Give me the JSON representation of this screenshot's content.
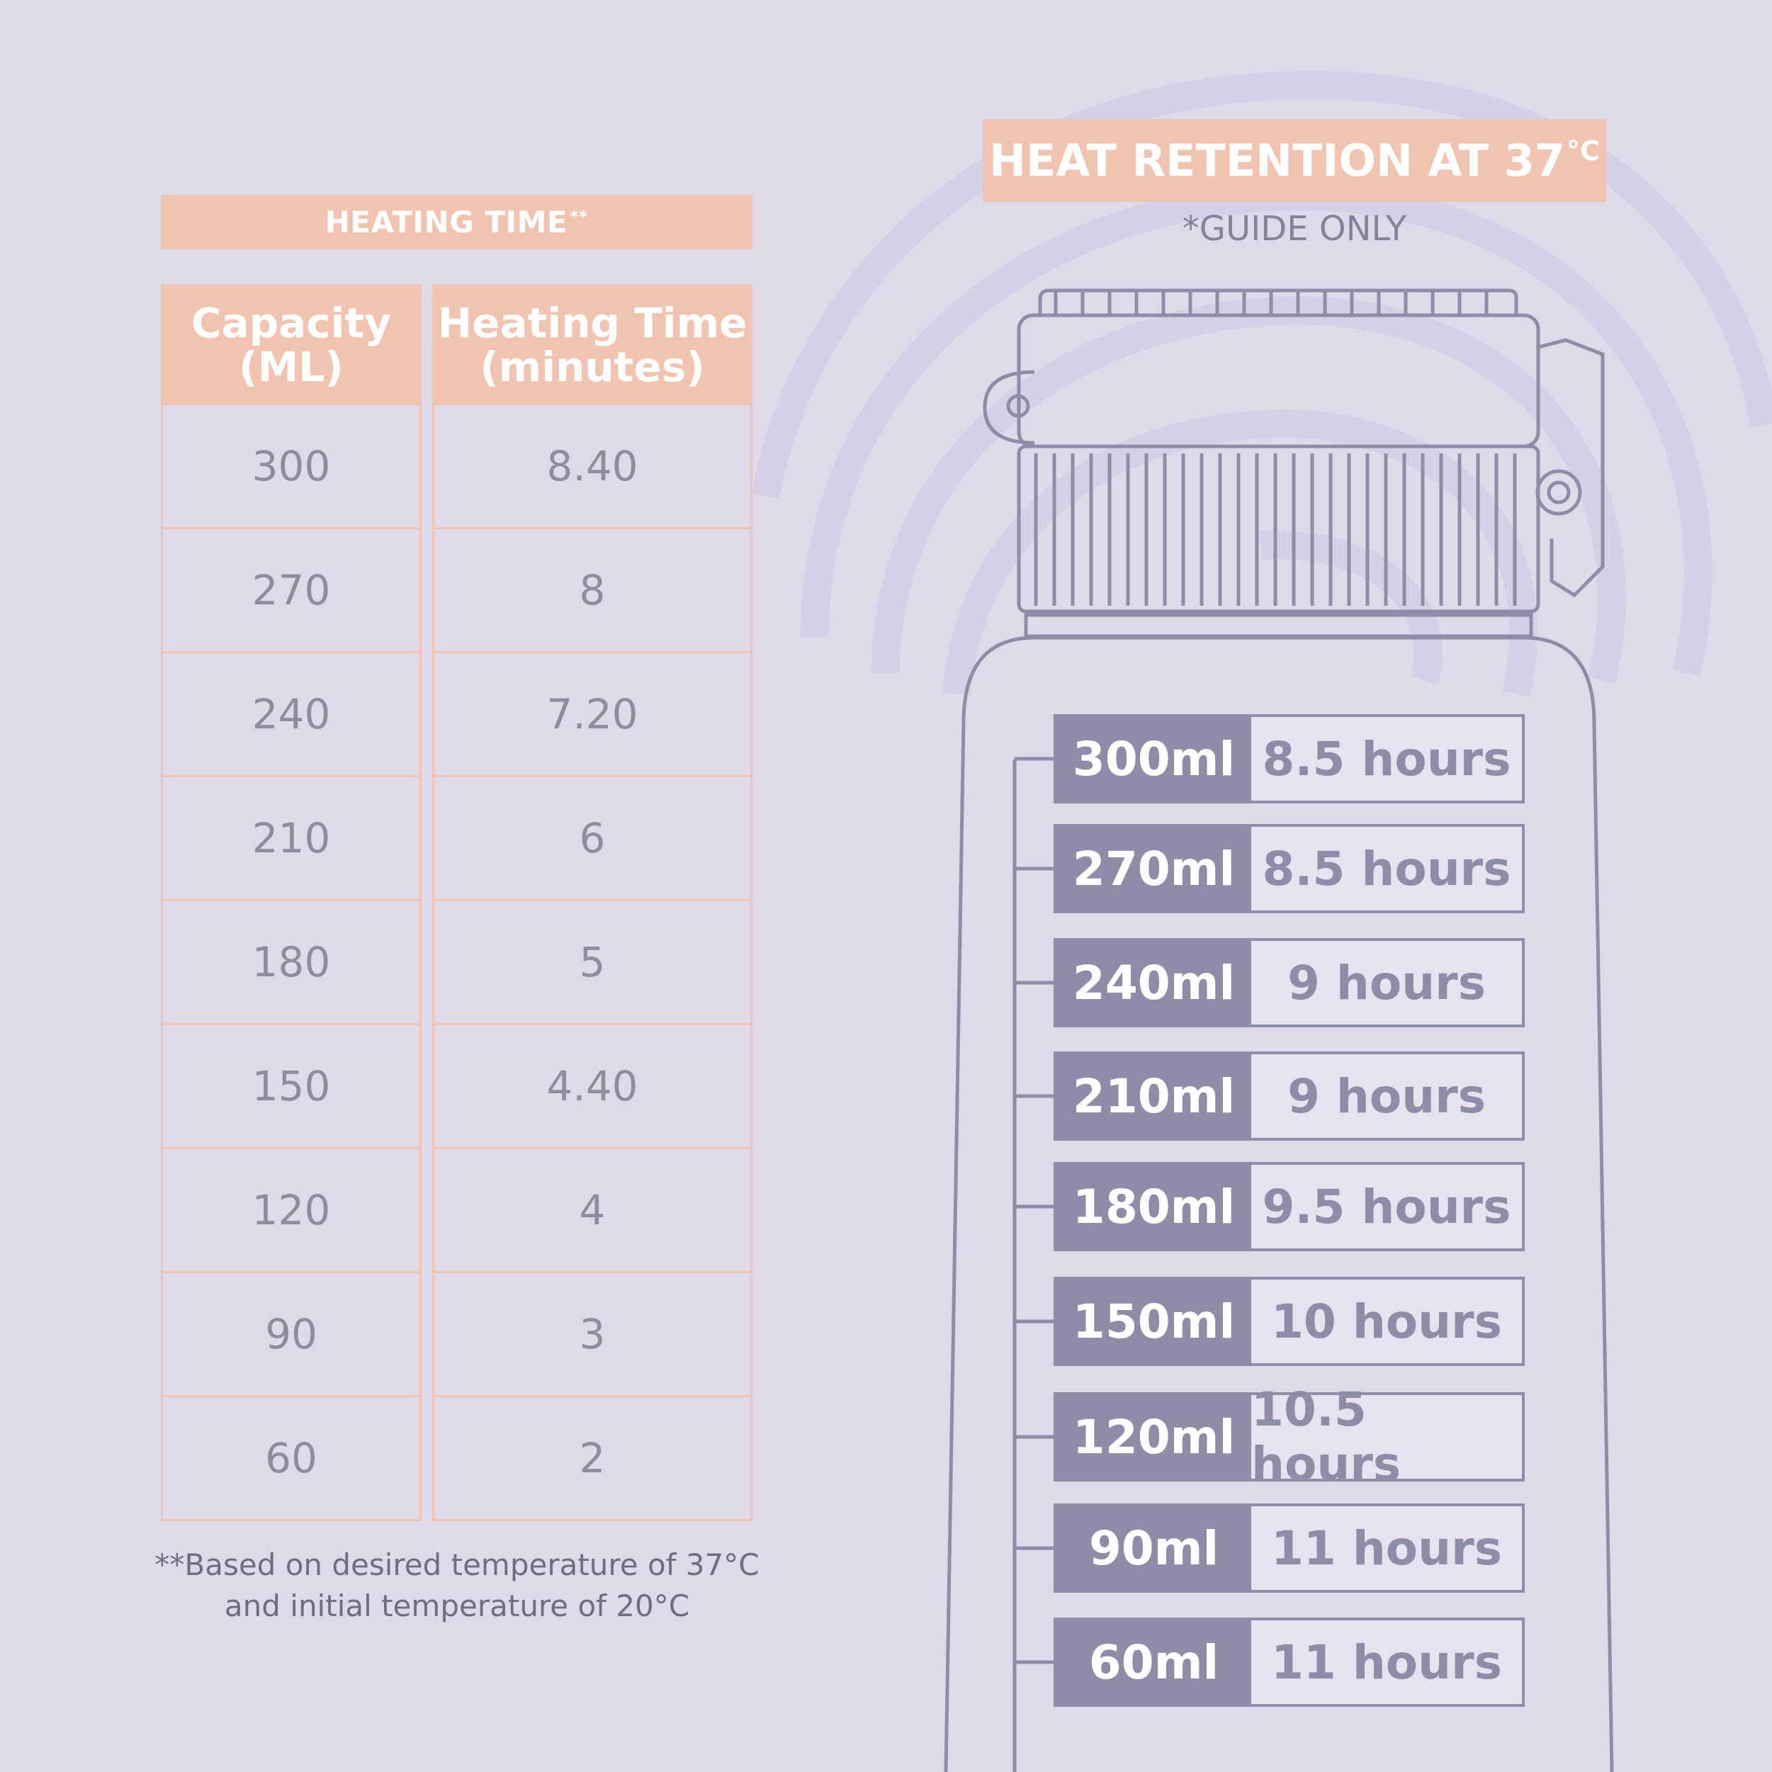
{
  "heating": {
    "banner_label": "HEATING TIME",
    "banner_mark": "**",
    "col_capacity_line1": "Capacity",
    "col_capacity_line2": "(ML)",
    "col_time_line1": "Heating Time",
    "col_time_line2": "(minutes)",
    "rows": [
      {
        "capacity": "300",
        "time": "8.40"
      },
      {
        "capacity": "270",
        "time": "8"
      },
      {
        "capacity": "240",
        "time": "7.20"
      },
      {
        "capacity": "210",
        "time": "6"
      },
      {
        "capacity": "180",
        "time": "5"
      },
      {
        "capacity": "150",
        "time": "4.40"
      },
      {
        "capacity": "120",
        "time": "4"
      },
      {
        "capacity": "90",
        "time": "3"
      },
      {
        "capacity": "60",
        "time": "2"
      }
    ],
    "footnote_line1": "**Based on desired temperature of 37°C",
    "footnote_line2": "and initial temperature of 20°C"
  },
  "retention": {
    "banner_label": "HEAT RETENTION AT 37",
    "banner_unit": "°C",
    "note": "*GUIDE ONLY",
    "rows": [
      {
        "capacity": "300ml",
        "hours": "8.5 hours"
      },
      {
        "capacity": "270ml",
        "hours": "8.5 hours"
      },
      {
        "capacity": "240ml",
        "hours": "9 hours"
      },
      {
        "capacity": "210ml",
        "hours": "9 hours"
      },
      {
        "capacity": "180ml",
        "hours": "9.5 hours"
      },
      {
        "capacity": "150ml",
        "hours": "10 hours"
      },
      {
        "capacity": "120ml",
        "hours": "10.5 hours"
      },
      {
        "capacity": "90ml",
        "hours": "11 hours"
      },
      {
        "capacity": "60ml",
        "hours": "11 hours"
      }
    ]
  },
  "colors": {
    "background": "#dedaea",
    "peach": "#f0c4b1",
    "slate": "#8e8ca6",
    "text_grey": "#8f8d9d"
  },
  "icons": [
    "swirl-pattern-decoration",
    "bottle-lid-illustration",
    "bottle-body-illustration"
  ]
}
